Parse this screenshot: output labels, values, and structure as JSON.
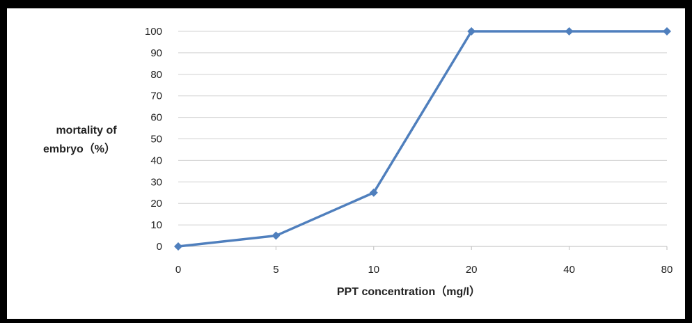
{
  "chart_data": {
    "type": "line",
    "categories": [
      "0",
      "5",
      "10",
      "20",
      "40",
      "80"
    ],
    "series": [
      {
        "values": [
          0,
          5,
          25,
          100,
          100,
          100
        ]
      }
    ],
    "title": "",
    "xlabel": "PPT concentration（mg/l）",
    "ylabel_lines": [
      "mortality of",
      "embryo（%）"
    ],
    "ylim": [
      0,
      100
    ],
    "yticks": [
      0,
      10,
      20,
      30,
      40,
      50,
      60,
      70,
      80,
      90,
      100
    ],
    "grid": true,
    "legend": "none",
    "line_color": "#4f7fbd"
  }
}
